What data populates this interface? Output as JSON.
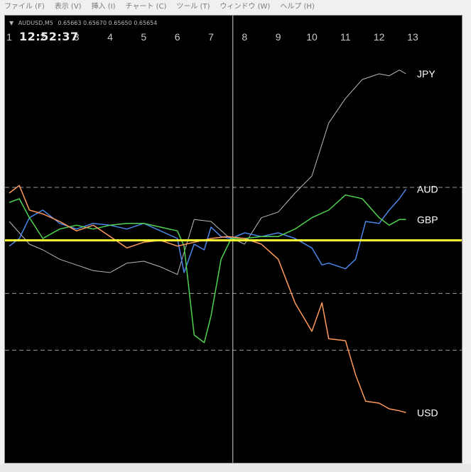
{
  "menu": [
    "ファイル (F)",
    "表示 (V)",
    "挿入 (I)",
    "チャート (C)",
    "ツール (T)",
    "ウィンドウ (W)",
    "ヘルプ (H)"
  ],
  "chart_header": {
    "symbol": "AUDUSD,M5",
    "prices": "0.65663 0.65670 0.65650 0.65654"
  },
  "clock": "12:52:37",
  "colors": {
    "JPY": "#b9b9b9",
    "AUD": "#4a86e8",
    "GBP": "#4fd24f",
    "USD": "#ff9a5c",
    "baseline": "#ffff33",
    "vline": "#cfcfcf",
    "dashed": "#9a9a9a"
  },
  "chart_data": {
    "type": "line",
    "x_ticks": [
      "1",
      "2",
      "3",
      "4",
      "5",
      "6",
      "7",
      "8",
      "9",
      "10",
      "11",
      "12",
      "13"
    ],
    "xlim": [
      1,
      13
    ],
    "ylim": [
      -110,
      115
    ],
    "baseline": 0,
    "dashed_levels": [
      28,
      -28,
      -58
    ],
    "cursor_x": 7.65,
    "series": [
      {
        "name": "JPY",
        "x": [
          1,
          1.3,
          1.6,
          2,
          2.5,
          3,
          3.5,
          4,
          4.5,
          5,
          5.5,
          6,
          6.5,
          7,
          7.5,
          8,
          8.5,
          9,
          9.5,
          10,
          10.5,
          11,
          11.5,
          12,
          12.3,
          12.6,
          12.8
        ],
        "y": [
          10,
          4,
          -2,
          -5,
          -10,
          -13,
          -16,
          -17,
          -12,
          -11,
          -14,
          -18,
          11,
          10,
          2,
          -2,
          12,
          15,
          25,
          34,
          62,
          75,
          85,
          88,
          87,
          90,
          88
        ]
      },
      {
        "name": "AUD",
        "x": [
          1,
          1.3,
          1.6,
          2,
          2.5,
          3,
          3.5,
          4,
          4.5,
          5,
          5.5,
          6,
          6.2,
          6.5,
          6.8,
          7,
          7.3,
          7.6,
          8,
          8.5,
          9,
          9.5,
          10,
          10.3,
          10.5,
          11,
          11.3,
          11.6,
          12,
          12.3,
          12.6,
          12.8
        ],
        "y": [
          -3,
          1,
          12,
          16,
          9,
          6,
          9,
          8,
          6,
          9,
          5,
          1,
          -17,
          -2,
          -5,
          7,
          2,
          1,
          4,
          2,
          4,
          1,
          -4,
          -13,
          -12,
          -15,
          -10,
          10,
          9,
          16,
          22,
          27
        ]
      },
      {
        "name": "GBP",
        "x": [
          1,
          1.3,
          1.6,
          2,
          2.5,
          3,
          3.5,
          4,
          4.5,
          5,
          5.5,
          6,
          6.2,
          6.5,
          6.8,
          7,
          7.3,
          7.6,
          8,
          8.5,
          9,
          9.5,
          10,
          10.5,
          11,
          11.5,
          12,
          12.3,
          12.6,
          12.8
        ],
        "y": [
          20,
          22,
          12,
          1,
          6,
          8,
          6,
          8,
          9,
          9,
          7,
          5,
          -3,
          -50,
          -54,
          -40,
          -10,
          1,
          1,
          2,
          2,
          6,
          12,
          16,
          24,
          22,
          12,
          8,
          11,
          11
        ]
      },
      {
        "name": "USD",
        "x": [
          1,
          1.3,
          1.6,
          2,
          2.5,
          3,
          3.5,
          4,
          4.5,
          5,
          5.5,
          6,
          6.5,
          7,
          7.5,
          8,
          8.5,
          9,
          9.5,
          10,
          10.3,
          10.5,
          11,
          11.3,
          11.6,
          12,
          12.3,
          12.6,
          12.8
        ],
        "y": [
          25,
          29,
          16,
          14,
          10,
          5,
          8,
          2,
          -4,
          -1,
          0,
          -3,
          -1,
          1,
          2,
          1,
          -2,
          -10,
          -33,
          -48,
          -33,
          -52,
          -53,
          -71,
          -85,
          -86,
          -89,
          -90,
          -91
        ]
      }
    ],
    "labels": [
      {
        "text": "JPY",
        "series": "JPY"
      },
      {
        "text": "AUD",
        "series": "AUD"
      },
      {
        "text": "GBP",
        "series": "GBP"
      },
      {
        "text": "USD",
        "series": "USD"
      }
    ]
  }
}
